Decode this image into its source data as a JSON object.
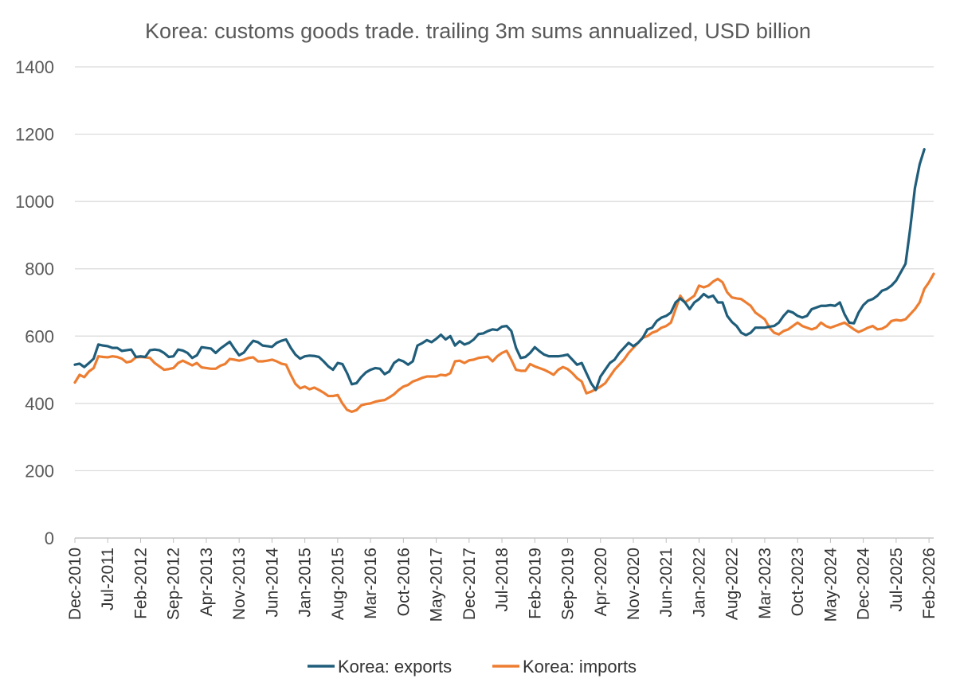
{
  "chart_data": {
    "type": "line",
    "title": "Korea: customs goods trade. trailing 3m sums annualized, USD billion",
    "xlabel": "",
    "ylabel": "",
    "ylim": [
      0,
      1400
    ],
    "yticks": [
      0,
      200,
      400,
      600,
      800,
      1000,
      1200,
      1400
    ],
    "grid": "horizontal",
    "legend": "bottom",
    "x_start": "Dec-2010",
    "x_tick_labels": [
      "Dec-2010",
      "Jul-2011",
      "Feb-2012",
      "Sep-2012",
      "Apr-2013",
      "Nov-2013",
      "Jun-2014",
      "Jan-2015",
      "Aug-2015",
      "Mar-2016",
      "Oct-2016",
      "May-2017",
      "Dec-2017",
      "Jul-2018",
      "Feb-2019",
      "Sep-2019",
      "Apr-2020",
      "Nov-2020",
      "Jun-2021",
      "Jan-2022",
      "Aug-2022",
      "Mar-2023",
      "Oct-2023",
      "May-2024",
      "Dec-2024",
      "Jul-2025",
      "Feb-2026"
    ],
    "series": [
      {
        "name": "Korea: exports",
        "color": "#1F5D7A",
        "values": [
          515,
          518,
          508,
          520,
          533,
          575,
          572,
          570,
          565,
          565,
          556,
          558,
          560,
          538,
          540,
          538,
          558,
          560,
          558,
          550,
          538,
          540,
          560,
          557,
          550,
          535,
          543,
          567,
          565,
          563,
          550,
          563,
          573,
          583,
          562,
          543,
          551,
          570,
          586,
          582,
          572,
          570,
          568,
          580,
          586,
          590,
          565,
          545,
          533,
          540,
          542,
          541,
          538,
          525,
          510,
          500,
          520,
          517,
          490,
          457,
          460,
          478,
          492,
          500,
          505,
          503,
          487,
          495,
          520,
          530,
          525,
          515,
          525,
          572,
          579,
          588,
          582,
          592,
          604,
          590,
          600,
          572,
          585,
          575,
          580,
          590,
          606,
          608,
          615,
          620,
          618,
          628,
          630,
          615,
          565,
          535,
          538,
          550,
          567,
          555,
          545,
          540,
          540,
          540,
          542,
          545,
          530,
          515,
          520,
          490,
          460,
          440,
          480,
          500,
          520,
          530,
          550,
          565,
          580,
          570,
          580,
          595,
          620,
          625,
          645,
          655,
          660,
          670,
          700,
          712,
          700,
          680,
          700,
          710,
          725,
          715,
          720,
          700,
          700,
          660,
          642,
          630,
          610,
          603,
          610,
          625,
          625,
          625,
          628,
          630,
          640,
          660,
          675,
          670,
          660,
          655,
          660,
          680,
          685,
          690,
          690,
          692,
          690,
          700,
          665,
          640,
          638,
          670,
          692,
          705,
          710,
          720,
          735,
          740,
          750,
          765,
          790,
          815,
          920,
          1040,
          1110,
          1155
        ]
      },
      {
        "name": "Korea: imports",
        "color": "#ED7D31",
        "values": [
          462,
          485,
          478,
          495,
          505,
          540,
          538,
          537,
          540,
          538,
          533,
          522,
          525,
          537,
          538,
          537,
          535,
          520,
          510,
          500,
          502,
          505,
          520,
          527,
          520,
          513,
          520,
          507,
          505,
          503,
          503,
          512,
          517,
          532,
          530,
          527,
          530,
          535,
          537,
          525,
          525,
          527,
          530,
          525,
          518,
          515,
          485,
          458,
          445,
          450,
          442,
          447,
          440,
          432,
          422,
          422,
          425,
          400,
          381,
          375,
          380,
          394,
          398,
          400,
          405,
          408,
          410,
          418,
          427,
          440,
          450,
          455,
          465,
          470,
          476,
          480,
          480,
          480,
          485,
          483,
          490,
          525,
          527,
          520,
          528,
          530,
          535,
          537,
          539,
          525,
          540,
          550,
          556,
          530,
          500,
          497,
          497,
          517,
          510,
          505,
          500,
          493,
          485,
          500,
          508,
          502,
          490,
          475,
          465,
          430,
          435,
          442,
          450,
          460,
          480,
          500,
          515,
          530,
          550,
          565,
          580,
          595,
          600,
          610,
          615,
          625,
          630,
          640,
          680,
          720,
          700,
          710,
          720,
          750,
          745,
          750,
          762,
          770,
          760,
          730,
          715,
          712,
          710,
          700,
          690,
          670,
          660,
          650,
          625,
          610,
          605,
          615,
          620,
          630,
          640,
          630,
          625,
          620,
          625,
          640,
          630,
          625,
          630,
          635,
          640,
          630,
          620,
          612,
          618,
          625,
          630,
          620,
          622,
          630,
          645,
          648,
          646,
          650,
          665,
          680,
          700,
          740,
          760,
          785
        ]
      }
    ]
  }
}
